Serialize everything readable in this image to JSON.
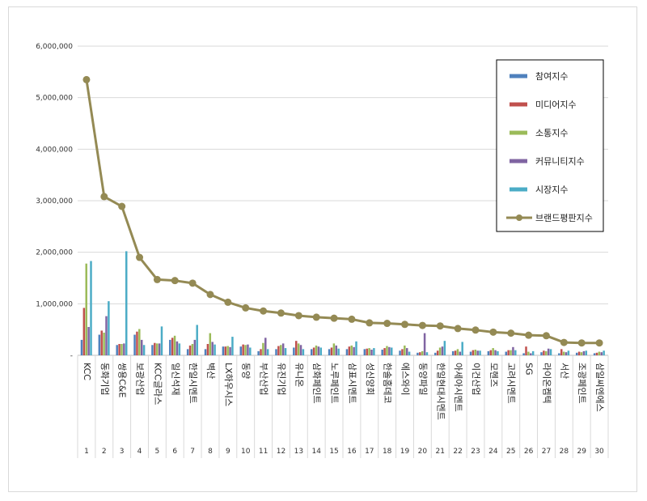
{
  "chart_data": {
    "type": "bar",
    "title": "",
    "xlabel": "",
    "ylabel": "",
    "ylim": [
      0,
      6000000
    ],
    "yticks": [
      0,
      1000000,
      2000000,
      3000000,
      4000000,
      5000000,
      6000000
    ],
    "ytick_labels": [
      "-",
      "1,000,000",
      "2,000,000",
      "3,000,000",
      "4,000,000",
      "5,000,000",
      "6,000,000"
    ],
    "ranks": [
      "1",
      "2",
      "3",
      "4",
      "5",
      "6",
      "7",
      "8",
      "9",
      "10",
      "11",
      "12",
      "13",
      "14",
      "15",
      "16",
      "17",
      "18",
      "19",
      "20",
      "21",
      "22",
      "23",
      "24",
      "25",
      "26",
      "27",
      "28",
      "29",
      "30"
    ],
    "categories": [
      "KCC",
      "동화기업",
      "쌍용C&E",
      "보광산업",
      "KCC글라스",
      "일신석재",
      "한일시멘트",
      "벽산",
      "LX하우시스",
      "동양",
      "부산산업",
      "유진기업",
      "유니온",
      "삼화페인트",
      "노루페인트",
      "삼표시멘트",
      "성신양회",
      "한솔홈데코",
      "에스와이",
      "동양파일",
      "한일현대시멘트",
      "아세아시멘트",
      "이건산업",
      "모헨즈",
      "고려시멘트",
      "SG",
      "라이온켐텍",
      "서산",
      "조광페인트",
      "삼일씨엔에스"
    ],
    "series": [
      {
        "name": "참여지수",
        "color": "#4f81bd",
        "values": [
          300000,
          400000,
          200000,
          400000,
          200000,
          300000,
          120000,
          120000,
          170000,
          170000,
          80000,
          120000,
          150000,
          120000,
          120000,
          120000,
          120000,
          110000,
          90000,
          50000,
          50000,
          80000,
          70000,
          80000,
          70000,
          40000,
          60000,
          40000,
          50000,
          40000
        ]
      },
      {
        "name": "미디어지수",
        "color": "#c0504d",
        "values": [
          920000,
          480000,
          220000,
          460000,
          240000,
          340000,
          190000,
          220000,
          170000,
          210000,
          120000,
          180000,
          280000,
          150000,
          150000,
          170000,
          130000,
          140000,
          120000,
          60000,
          90000,
          90000,
          100000,
          100000,
          100000,
          170000,
          90000,
          120000,
          70000,
          50000
        ]
      },
      {
        "name": "소통지수",
        "color": "#9bbb59",
        "values": [
          1780000,
          440000,
          220000,
          510000,
          230000,
          380000,
          220000,
          430000,
          180000,
          200000,
          240000,
          200000,
          230000,
          190000,
          230000,
          190000,
          140000,
          180000,
          190000,
          80000,
          150000,
          120000,
          110000,
          140000,
          100000,
          70000,
          80000,
          70000,
          60000,
          70000
        ]
      },
      {
        "name": "커뮤니티지수",
        "color": "#8064a2",
        "values": [
          550000,
          760000,
          230000,
          300000,
          230000,
          270000,
          300000,
          260000,
          160000,
          210000,
          340000,
          230000,
          200000,
          170000,
          190000,
          160000,
          110000,
          160000,
          140000,
          430000,
          170000,
          70000,
          90000,
          100000,
          160000,
          40000,
          130000,
          60000,
          80000,
          60000
        ]
      },
      {
        "name": "시장지수",
        "color": "#4bacc6",
        "values": [
          1830000,
          1050000,
          2020000,
          200000,
          560000,
          230000,
          590000,
          210000,
          360000,
          150000,
          120000,
          140000,
          120000,
          150000,
          130000,
          270000,
          140000,
          150000,
          70000,
          60000,
          280000,
          260000,
          90000,
          80000,
          100000,
          80000,
          120000,
          90000,
          90000,
          90000
        ]
      },
      {
        "name": "브랜드평판지수",
        "color": "#948a54",
        "type": "line",
        "values": [
          5350000,
          3080000,
          2890000,
          1900000,
          1470000,
          1450000,
          1400000,
          1180000,
          1030000,
          920000,
          860000,
          820000,
          770000,
          740000,
          720000,
          700000,
          630000,
          620000,
          600000,
          580000,
          570000,
          520000,
          490000,
          450000,
          430000,
          390000,
          380000,
          250000,
          240000,
          240000
        ]
      }
    ]
  }
}
